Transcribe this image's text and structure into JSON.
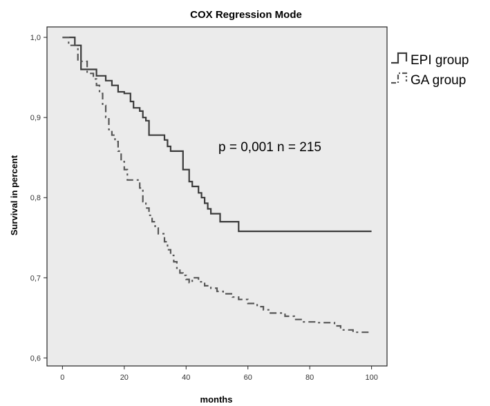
{
  "chart_data": {
    "type": "line",
    "subtype": "step (Kaplan-Meier survival curve)",
    "title": "COX Regression Mode",
    "xlabel": "months",
    "ylabel": "Survival in percent",
    "xlim": [
      -5,
      105
    ],
    "ylim": [
      0.59,
      1.013
    ],
    "x_ticks": [
      {
        "value": 0,
        "label": "0"
      },
      {
        "value": 20,
        "label": "20"
      },
      {
        "value": 40,
        "label": "40"
      },
      {
        "value": 60,
        "label": "60"
      },
      {
        "value": 80,
        "label": "80"
      },
      {
        "value": 100,
        "label": "100"
      }
    ],
    "y_ticks": [
      {
        "value": 0.6,
        "label": "0,6"
      },
      {
        "value": 0.7,
        "label": "0,7"
      },
      {
        "value": 0.8,
        "label": "0,8"
      },
      {
        "value": 0.9,
        "label": "0,9"
      },
      {
        "value": 1.0,
        "label": "1,0"
      }
    ],
    "grid": false,
    "legend_position": "right-top, outside plot",
    "annotation": "p = 0,001 n = 215",
    "plot_background": "#ebebeb",
    "series": [
      {
        "name": "EPI group",
        "line_style": "solid",
        "color": "#3a3a3a",
        "points": [
          [
            0,
            1.0
          ],
          [
            4,
            0.99
          ],
          [
            6,
            0.96
          ],
          [
            10,
            0.96
          ],
          [
            11,
            0.952
          ],
          [
            14,
            0.946
          ],
          [
            16,
            0.94
          ],
          [
            18,
            0.932
          ],
          [
            20,
            0.93
          ],
          [
            22,
            0.92
          ],
          [
            23,
            0.912
          ],
          [
            25,
            0.908
          ],
          [
            26,
            0.9
          ],
          [
            27,
            0.896
          ],
          [
            28,
            0.878
          ],
          [
            33,
            0.872
          ],
          [
            34,
            0.864
          ],
          [
            35,
            0.858
          ],
          [
            39,
            0.835
          ],
          [
            41,
            0.82
          ],
          [
            42,
            0.814
          ],
          [
            44,
            0.806
          ],
          [
            45,
            0.8
          ],
          [
            46,
            0.793
          ],
          [
            47,
            0.786
          ],
          [
            48,
            0.78
          ],
          [
            51,
            0.77
          ],
          [
            57,
            0.758
          ],
          [
            100,
            0.758
          ]
        ]
      },
      {
        "name": "GA group",
        "line_style": "dash-dot",
        "color": "#555555",
        "points": [
          [
            0,
            1.0
          ],
          [
            2,
            0.99
          ],
          [
            5,
            0.97
          ],
          [
            8,
            0.955
          ],
          [
            10,
            0.948
          ],
          [
            11,
            0.94
          ],
          [
            12,
            0.93
          ],
          [
            13,
            0.915
          ],
          [
            14,
            0.9
          ],
          [
            15,
            0.885
          ],
          [
            16,
            0.878
          ],
          [
            17,
            0.87
          ],
          [
            18,
            0.858
          ],
          [
            19,
            0.845
          ],
          [
            20,
            0.835
          ],
          [
            21,
            0.822
          ],
          [
            25,
            0.812
          ],
          [
            26,
            0.795
          ],
          [
            27,
            0.787
          ],
          [
            28,
            0.778
          ],
          [
            29,
            0.77
          ],
          [
            30,
            0.762
          ],
          [
            31,
            0.755
          ],
          [
            33,
            0.745
          ],
          [
            34,
            0.735
          ],
          [
            35,
            0.728
          ],
          [
            36,
            0.72
          ],
          [
            37,
            0.712
          ],
          [
            38,
            0.706
          ],
          [
            39,
            0.703
          ],
          [
            40,
            0.698
          ],
          [
            41,
            0.694
          ],
          [
            42,
            0.7
          ],
          [
            44,
            0.695
          ],
          [
            46,
            0.69
          ],
          [
            48,
            0.687
          ],
          [
            50,
            0.683
          ],
          [
            52,
            0.68
          ],
          [
            55,
            0.676
          ],
          [
            57,
            0.673
          ],
          [
            60,
            0.668
          ],
          [
            63,
            0.664
          ],
          [
            65,
            0.66
          ],
          [
            67,
            0.656
          ],
          [
            72,
            0.652
          ],
          [
            75,
            0.648
          ],
          [
            78,
            0.645
          ],
          [
            82,
            0.644
          ],
          [
            88,
            0.64
          ],
          [
            90,
            0.635
          ],
          [
            94,
            0.632
          ],
          [
            100,
            0.632
          ]
        ]
      }
    ]
  }
}
